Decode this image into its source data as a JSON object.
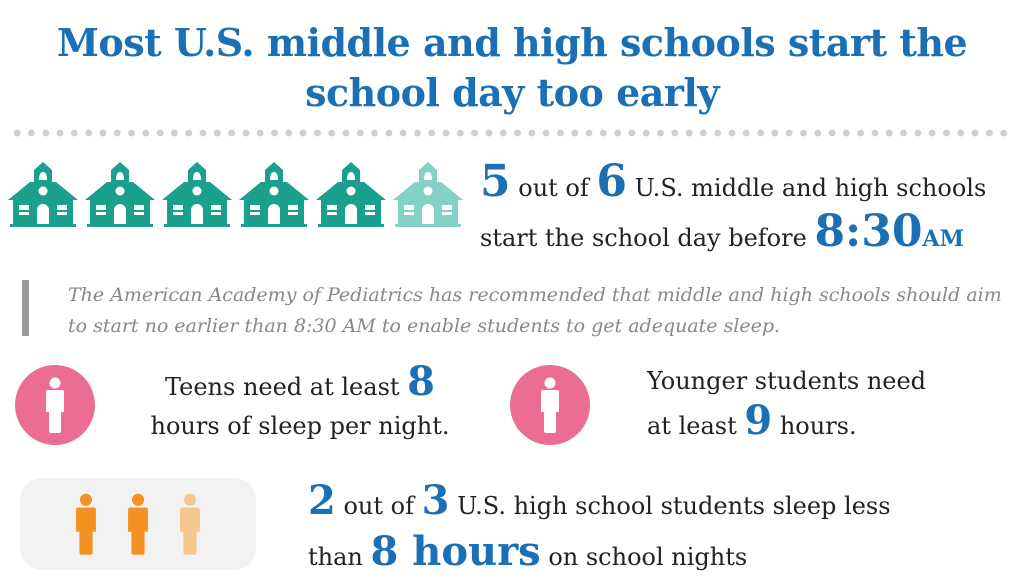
{
  "title": {
    "line1": "Most U.S. middle and high schools start the",
    "line2": "school day too early"
  },
  "colors": {
    "title_blue": "#1a6fb5",
    "school_teal": "#1aa08c",
    "school_teal_light": "#84d2c6",
    "pink": "#ec6d94",
    "orange": "#f39121",
    "orange_light": "#f5c68e"
  },
  "schools": {
    "filled": 5,
    "total": 6,
    "icon": "schoolhouse-icon"
  },
  "stat_schools": {
    "num1": "5",
    "t1": " out of ",
    "num2": "6",
    "t2": " U.S. middle and high schools",
    "t3": "start the school day before ",
    "time": "8:30",
    "ampm": "AM"
  },
  "quote": "The American Academy of Pediatrics has recommended that middle and high schools should aim to start no earlier than 8:30 AM to enable students to get adequate sleep.",
  "teens": {
    "t1": "Teens need at least ",
    "num": "8",
    "t2": "hours of sleep per night.",
    "icon": "person-icon"
  },
  "younger": {
    "t1": "Younger students need",
    "t2": "at least ",
    "num": "9",
    "t3": " hours.",
    "icon": "person-icon"
  },
  "students": {
    "filled": 2,
    "total": 3,
    "icon": "person-icon"
  },
  "stat_students": {
    "num1": "2",
    "t1": " out of ",
    "num2": "3",
    "t2": " U.S. high school students sleep less",
    "t3": "than ",
    "num3": "8 hours",
    "t4": " on school nights"
  }
}
